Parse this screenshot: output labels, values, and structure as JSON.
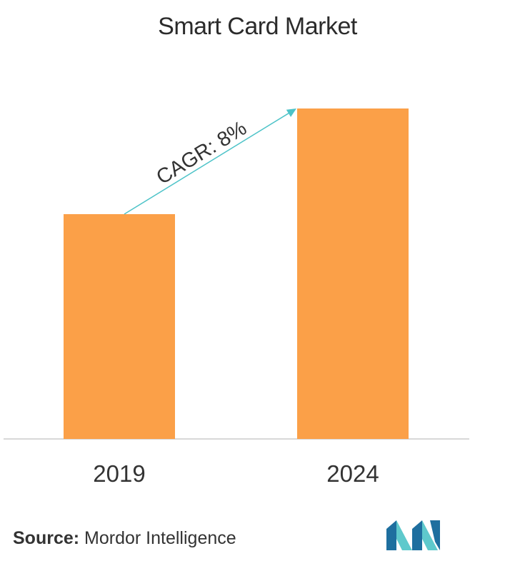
{
  "chart_data": {
    "type": "bar",
    "title": "Smart Card Market",
    "categories": [
      "2019",
      "2024"
    ],
    "values": [
      1.0,
      1.47
    ],
    "bar_color": "#FBA048",
    "annotation": "CAGR: 8%",
    "annotation_color": "#4DC3C8",
    "xlabel": "",
    "ylabel": "",
    "grid": false,
    "legend": "none"
  },
  "source": {
    "label": "Source:",
    "text": "Mordor Intelligence"
  },
  "colors": {
    "baseline": "#CCCCCC",
    "logo_dark": "#1E6F9F",
    "logo_light": "#5EC9CC"
  },
  "logo_icon": "mordor-intelligence-logo"
}
